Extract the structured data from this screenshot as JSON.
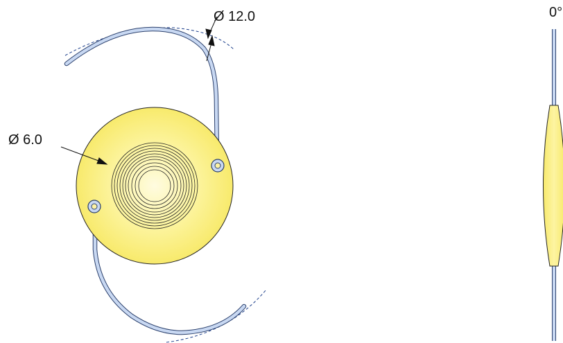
{
  "figure": {
    "front_view": {
      "outer_diameter_label": "Ø 12.0",
      "optic_diameter_label": "Ø 6.0"
    },
    "side_view": {
      "angle_label": "0°"
    }
  },
  "colors": {
    "optic_light": "#fffbe0",
    "optic_fill": "#fbef7a",
    "optic_edge": "#222222",
    "haptic_fill": "#c8d8f2",
    "haptic_outline": "#2a3f6b",
    "dash": "#1a3d8a",
    "rings": "#222222"
  }
}
